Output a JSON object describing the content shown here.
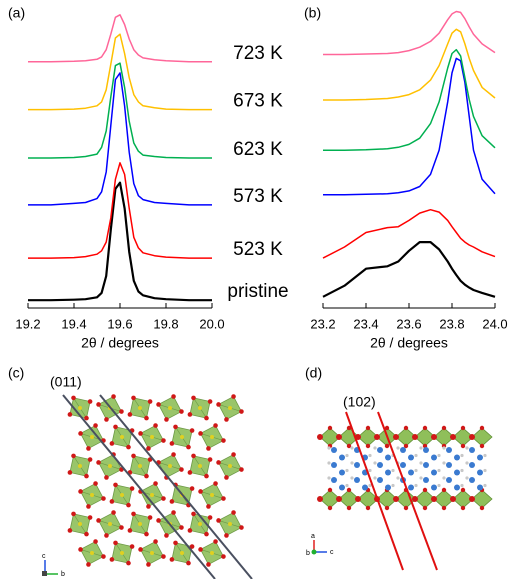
{
  "chart_data": [
    {
      "type": "line",
      "title": "(a)",
      "x_label": "2θ / degrees",
      "x": [
        19.2,
        19.3,
        19.4,
        19.45,
        19.5,
        19.52,
        19.54,
        19.56,
        19.58,
        19.6,
        19.62,
        19.64,
        19.66,
        19.68,
        19.7,
        19.75,
        19.8,
        19.9,
        20.0
      ],
      "xlim": [
        19.2,
        20.0
      ],
      "xticks": [
        19.2,
        19.4,
        19.6,
        19.8,
        {
          "value": 20.0,
          "label": "20.0"
        }
      ],
      "ylim": [
        0,
        6.1
      ],
      "series": [
        {
          "name": "pristine",
          "color": "#000000",
          "values": [
            0.1,
            0.1,
            0.11,
            0.12,
            0.16,
            0.25,
            0.6,
            1.56,
            2.4,
            2.53,
            2.0,
            1.1,
            0.5,
            0.28,
            0.2,
            0.14,
            0.12,
            0.1,
            0.1
          ]
        },
        {
          "name": "523 K",
          "color": "#ff0000",
          "values": [
            0.97,
            0.97,
            0.98,
            1.0,
            1.05,
            1.12,
            1.3,
            1.8,
            2.6,
            2.94,
            2.7,
            2.0,
            1.4,
            1.18,
            1.08,
            1.02,
            0.99,
            0.97,
            0.97
          ]
        },
        {
          "name": "573 K",
          "color": "#0000ff",
          "values": [
            2.07,
            2.07,
            2.1,
            2.12,
            2.2,
            2.34,
            2.75,
            3.71,
            4.66,
            4.8,
            4.12,
            3.16,
            2.51,
            2.26,
            2.18,
            2.12,
            2.1,
            2.07,
            2.07
          ]
        },
        {
          "name": "623 K",
          "color": "#00b050",
          "values": [
            3.04,
            3.04,
            3.05,
            3.07,
            3.12,
            3.26,
            3.6,
            4.3,
            4.95,
            5.0,
            4.5,
            3.8,
            3.35,
            3.18,
            3.1,
            3.07,
            3.05,
            3.04,
            3.04
          ]
        },
        {
          "name": "673 K",
          "color": "#ffc000",
          "values": [
            4.04,
            4.04,
            4.05,
            4.07,
            4.12,
            4.2,
            4.45,
            4.98,
            5.52,
            5.6,
            5.2,
            4.7,
            4.35,
            4.2,
            4.12,
            4.08,
            4.05,
            4.04,
            4.04
          ]
        },
        {
          "name": "723 K",
          "color": "#ff6699",
          "values": [
            5.03,
            5.03,
            5.04,
            5.05,
            5.08,
            5.13,
            5.28,
            5.6,
            5.95,
            6.0,
            5.8,
            5.5,
            5.28,
            5.17,
            5.11,
            5.07,
            5.05,
            5.03,
            5.03
          ]
        }
      ]
    },
    {
      "type": "line",
      "title": "(b)",
      "x_label": "2θ / degrees",
      "x": [
        23.2,
        23.3,
        23.4,
        23.5,
        23.55,
        23.6,
        23.65,
        23.7,
        23.74,
        23.78,
        23.8,
        23.82,
        23.84,
        23.86,
        23.88,
        23.9,
        23.94,
        24.0
      ],
      "xlim": [
        23.2,
        24.0
      ],
      "xticks": [
        23.2,
        23.4,
        23.6,
        23.8,
        {
          "value": 24.0,
          "label": "24.0"
        }
      ],
      "ylim": [
        0,
        6.1
      ],
      "series": [
        {
          "color": "#000000",
          "values": [
            0.17,
            0.4,
            0.75,
            0.8,
            0.9,
            1.12,
            1.3,
            1.3,
            1.15,
            0.9,
            0.75,
            0.62,
            0.5,
            0.42,
            0.36,
            0.31,
            0.25,
            0.17
          ]
        },
        {
          "color": "#ff0000",
          "values": [
            0.97,
            1.2,
            1.5,
            1.6,
            1.62,
            1.75,
            1.9,
            1.97,
            1.92,
            1.75,
            1.62,
            1.5,
            1.38,
            1.3,
            1.24,
            1.2,
            1.1,
            1.0
          ]
        },
        {
          "color": "#0000ff",
          "values": [
            2.28,
            2.28,
            2.29,
            2.3,
            2.32,
            2.36,
            2.45,
            2.7,
            3.2,
            4.2,
            4.8,
            5.1,
            5.05,
            4.6,
            3.9,
            3.2,
            2.6,
            2.3
          ]
        },
        {
          "color": "#00b050",
          "values": [
            3.2,
            3.2,
            3.21,
            3.23,
            3.26,
            3.32,
            3.45,
            3.75,
            4.2,
            4.9,
            5.2,
            5.28,
            5.15,
            4.7,
            4.25,
            3.9,
            3.5,
            3.25
          ]
        },
        {
          "color": "#ffc000",
          "values": [
            4.24,
            4.24,
            4.25,
            4.27,
            4.3,
            4.35,
            4.45,
            4.65,
            4.95,
            5.4,
            5.62,
            5.7,
            5.65,
            5.4,
            5.1,
            4.85,
            4.5,
            4.28
          ]
        },
        {
          "color": "#ff6699",
          "values": [
            5.18,
            5.18,
            5.19,
            5.2,
            5.22,
            5.26,
            5.33,
            5.45,
            5.62,
            5.9,
            6.02,
            6.07,
            6.05,
            5.92,
            5.75,
            5.6,
            5.4,
            5.22
          ]
        }
      ]
    }
  ],
  "structures": [
    {
      "label": "(c)",
      "plane": "(011)",
      "axes": [
        "c",
        "b"
      ]
    },
    {
      "label": "(d)",
      "plane": "(102)",
      "axes": [
        "a",
        "b",
        "c"
      ]
    }
  ]
}
